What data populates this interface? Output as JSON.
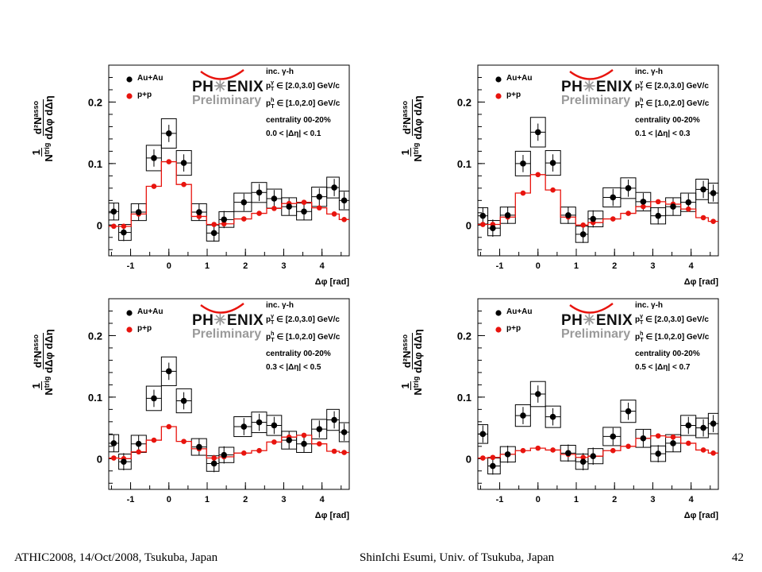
{
  "footer": {
    "left": "ATHIC2008, 14/Oct/2008, Tsukuba, Japan",
    "center": "ShinIchi Esumi, Univ. of Tsukuba, Japan",
    "page_number": "42"
  },
  "logo": {
    "ph_left": "PH",
    "star": "✳",
    "ph_right": "ENIX",
    "preliminary": "Preliminary"
  },
  "colors": {
    "auau": "#000000",
    "pp": "#e8140e"
  },
  "chart_data": [
    {
      "type": "scatter",
      "ylabel_num": "1",
      "ylabel_den": "N",
      "ylabel_den_sup": "trig",
      "ylabel_frac_num": "d²N",
      "ylabel_frac_num_sup": "asso",
      "ylabel_frac_den": "dΔφ dΔη",
      "xlabel": "Δφ [rad]",
      "xlim": [
        -1.571,
        4.712
      ],
      "ylim": [
        -0.05,
        0.26
      ],
      "x_ticks": [
        "-1",
        "0",
        "1",
        "2",
        "3",
        "4"
      ],
      "y_ticks": [
        "0",
        "0.1",
        "0.2"
      ],
      "legend": [
        "Au+Au",
        "p+p"
      ],
      "info": {
        "line1": "inc. γ-h",
        "line2": "p",
        "line2_sup": "γ",
        "line2_sub": "T",
        "line2_rest": " ∈ [2.0,3.0] GeV/c",
        "line3": "p",
        "line3_sup": "h",
        "line3_sub": "T",
        "line3_rest": " ∈ [1.0,2.0] GeV/c",
        "line4": "centrality 00-20%",
        "line5": "0.0 < |Δη| < 0.1"
      },
      "x": [
        -1.44,
        -1.18,
        -0.79,
        -0.39,
        0.0,
        0.39,
        0.79,
        1.18,
        1.44,
        1.96,
        2.36,
        2.75,
        3.14,
        3.53,
        3.93,
        4.32,
        4.58
      ],
      "series": [
        {
          "name": "Au+Au",
          "values": [
            0.022,
            -0.012,
            0.021,
            0.109,
            0.149,
            0.101,
            0.021,
            -0.013,
            0.009,
            0.037,
            0.053,
            0.043,
            0.03,
            0.022,
            0.046,
            0.061,
            0.04
          ]
        },
        {
          "name": "p+p",
          "values": [
            -0.002,
            -0.002,
            0.018,
            0.063,
            0.103,
            0.066,
            0.014,
            0.001,
            0.002,
            0.01,
            0.019,
            0.027,
            0.035,
            0.037,
            0.028,
            0.018,
            0.009
          ]
        }
      ]
    },
    {
      "type": "scatter",
      "ylabel_num": "1",
      "ylabel_den": "N",
      "ylabel_den_sup": "trig",
      "ylabel_frac_num": "d²N",
      "ylabel_frac_num_sup": "asso",
      "ylabel_frac_den": "dΔφ dΔη",
      "xlabel": "Δφ [rad]",
      "xlim": [
        -1.571,
        4.712
      ],
      "ylim": [
        -0.05,
        0.26
      ],
      "x_ticks": [
        "-1",
        "0",
        "1",
        "2",
        "3",
        "4"
      ],
      "y_ticks": [
        "0",
        "0.1",
        "0.2"
      ],
      "legend": [
        "Au+Au",
        "p+p"
      ],
      "info": {
        "line1": "inc. γ-h",
        "line2": "p",
        "line2_sup": "γ",
        "line2_sub": "T",
        "line2_rest": " ∈ [2.0,3.0] GeV/c",
        "line3": "p",
        "line3_sup": "h",
        "line3_sub": "T",
        "line3_rest": " ∈ [1.0,2.0] GeV/c",
        "line4": "centrality 00-20%",
        "line5": "0.1 < |Δη| < 0.3"
      },
      "x": [
        -1.44,
        -1.18,
        -0.79,
        -0.39,
        0.0,
        0.39,
        0.79,
        1.18,
        1.44,
        1.96,
        2.36,
        2.75,
        3.14,
        3.53,
        3.93,
        4.32,
        4.58
      ],
      "series": [
        {
          "name": "Au+Au",
          "values": [
            0.015,
            -0.005,
            0.016,
            0.1,
            0.151,
            0.101,
            0.016,
            -0.015,
            0.01,
            0.045,
            0.06,
            0.038,
            0.015,
            0.03,
            0.037,
            0.058,
            0.052
          ]
        },
        {
          "name": "p+p",
          "values": [
            0.001,
            0.001,
            0.013,
            0.052,
            0.082,
            0.057,
            0.013,
            0.0,
            0.004,
            0.01,
            0.019,
            0.03,
            0.038,
            0.034,
            0.026,
            0.012,
            0.006
          ]
        }
      ]
    },
    {
      "type": "scatter",
      "ylabel_num": "1",
      "ylabel_den": "N",
      "ylabel_den_sup": "trig",
      "ylabel_frac_num": "d²N",
      "ylabel_frac_num_sup": "asso",
      "ylabel_frac_den": "dΔφ dΔη",
      "xlabel": "Δφ [rad]",
      "xlim": [
        -1.571,
        4.712
      ],
      "ylim": [
        -0.05,
        0.26
      ],
      "x_ticks": [
        "-1",
        "0",
        "1",
        "2",
        "3",
        "4"
      ],
      "y_ticks": [
        "0",
        "0.1",
        "0.2"
      ],
      "legend": [
        "Au+Au",
        "p+p"
      ],
      "info": {
        "line1": "inc. γ-h",
        "line2": "p",
        "line2_sup": "γ",
        "line2_sub": "T",
        "line2_rest": " ∈ [2.0,3.0] GeV/c",
        "line3": "p",
        "line3_sup": "h",
        "line3_sub": "T",
        "line3_rest": " ∈ [1.0,2.0] GeV/c",
        "line4": "centrality 00-20%",
        "line5": "0.3 < |Δη| < 0.5"
      },
      "x": [
        -1.44,
        -1.18,
        -0.79,
        -0.39,
        0.0,
        0.39,
        0.79,
        1.18,
        1.44,
        1.96,
        2.36,
        2.75,
        3.14,
        3.53,
        3.93,
        4.32,
        4.58
      ],
      "series": [
        {
          "name": "Au+Au",
          "values": [
            0.025,
            -0.005,
            0.024,
            0.098,
            0.142,
            0.094,
            0.019,
            -0.008,
            0.006,
            0.052,
            0.059,
            0.054,
            0.03,
            0.024,
            0.048,
            0.063,
            0.043
          ]
        },
        {
          "name": "p+p",
          "values": [
            0.001,
            0.0,
            0.011,
            0.03,
            0.052,
            0.028,
            0.016,
            0.001,
            0.003,
            0.009,
            0.013,
            0.027,
            0.035,
            0.038,
            0.024,
            0.012,
            0.01
          ]
        }
      ]
    },
    {
      "type": "scatter",
      "ylabel_num": "1",
      "ylabel_den": "N",
      "ylabel_den_sup": "trig",
      "ylabel_frac_num": "d²N",
      "ylabel_frac_num_sup": "asso",
      "ylabel_frac_den": "dΔφ dΔη",
      "xlabel": "Δφ [rad]",
      "xlim": [
        -1.571,
        4.712
      ],
      "ylim": [
        -0.05,
        0.26
      ],
      "x_ticks": [
        "-1",
        "0",
        "1",
        "2",
        "3",
        "4"
      ],
      "y_ticks": [
        "0",
        "0.1",
        "0.2"
      ],
      "legend": [
        "Au+Au",
        "p+p"
      ],
      "info": {
        "line1": "inc. γ-h",
        "line2": "p",
        "line2_sup": "γ",
        "line2_sub": "T",
        "line2_rest": " ∈ [2.0,3.0] GeV/c",
        "line3": "p",
        "line3_sup": "h",
        "line3_sub": "T",
        "line3_rest": " ∈ [1.0,2.0] GeV/c",
        "line4": "centrality 00-20%",
        "line5": "0.5 < |Δη| < 0.7"
      },
      "x": [
        -1.44,
        -1.18,
        -0.79,
        -0.39,
        0.0,
        0.39,
        0.79,
        1.18,
        1.44,
        1.96,
        2.36,
        2.75,
        3.14,
        3.53,
        3.93,
        4.32,
        4.58
      ],
      "series": [
        {
          "name": "Au+Au",
          "values": [
            0.04,
            -0.012,
            0.007,
            0.07,
            0.105,
            0.068,
            0.009,
            -0.005,
            0.004,
            0.036,
            0.077,
            0.033,
            0.008,
            0.025,
            0.054,
            0.05,
            0.057
          ]
        },
        {
          "name": "p+p",
          "values": [
            0.001,
            0.002,
            0.007,
            0.013,
            0.017,
            0.014,
            0.007,
            0.002,
            0.004,
            0.013,
            0.02,
            0.033,
            0.037,
            0.035,
            0.025,
            0.014,
            0.009
          ]
        }
      ]
    }
  ]
}
